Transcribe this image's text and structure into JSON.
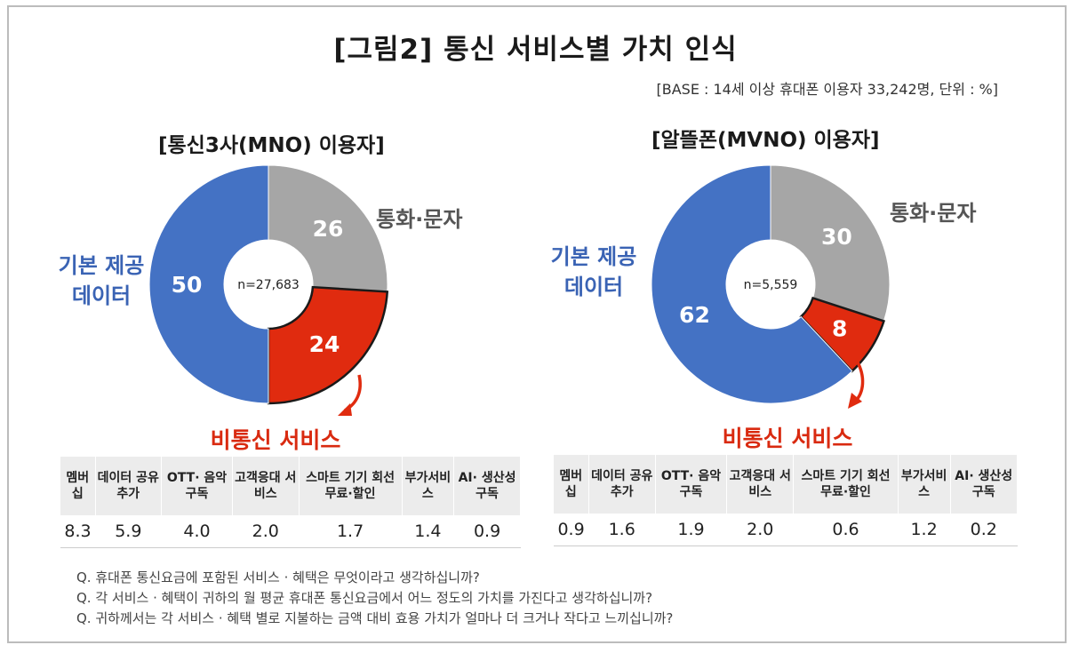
{
  "title": "[그림2] 통신 서비스별 가치 인식",
  "base_note": "[BASE : 14세 이상 휴대폰 이용자 33,242명, 단위 : %]",
  "panels": [
    {
      "title": "[통신3사(MNO) 이용자]",
      "n_label": "n=27,683",
      "label_basic": [
        "기본 제공",
        "데이터"
      ],
      "label_call": "통화·문자",
      "label_nontelecom": "비통신 서비스",
      "table_headers": [
        "멤버십",
        "데이터 공유추가",
        "OTT· 음악 구독",
        "고객응대 서비스",
        "스마트 기기 회선 무료·할인",
        "부가서비 스",
        "AI· 생산성 구독"
      ],
      "table_values": [
        "8.3",
        "5.9",
        "4.0",
        "2.0",
        "1.7",
        "1.4",
        "0.9"
      ]
    },
    {
      "title": "[알뜰폰(MVNO) 이용자]",
      "n_label": "n=5,559",
      "label_basic": [
        "기본 제공",
        "데이터"
      ],
      "label_call": "통화·문자",
      "label_nontelecom": "비통신 서비스",
      "table_headers": [
        "멤버십",
        "데이터 공유추가",
        "OTT· 음악 구독",
        "고객응대 서비스",
        "스마트 기기 회선 무료·할인",
        "부가서비 스",
        "AI· 생산성 구독"
      ],
      "table_values": [
        "0.9",
        "1.6",
        "1.9",
        "2.0",
        "0.6",
        "1.2",
        "0.2"
      ]
    }
  ],
  "notes": [
    "Q. 휴대폰 통신요금에 포함된 서비스 · 혜택은 무엇이라고 생각하십니까?",
    "Q. 각 서비스 · 혜택이 귀하의 월 평균 휴대폰 통신요금에서 어느 정도의 가치를 가진다고 생각하십니까?",
    "Q. 귀하께서는 각 서비스 · 혜택 별로 지불하는 금액 대비 효용 가치가 얼마나 더 크거나 작다고 느끼십니까?"
  ],
  "colors": {
    "blue": "#4472c4",
    "gray": "#a6a6a6",
    "red": "#e02b0f",
    "outline": "#1a1a1a"
  },
  "chart_data": [
    {
      "type": "pie",
      "title": "[통신3사(MNO) 이용자]",
      "categories": [
        "통화·문자",
        "비통신 서비스",
        "기본 제공 데이터"
      ],
      "values": [
        26,
        24,
        50
      ],
      "value_labels": [
        "26",
        "24",
        "50"
      ]
    },
    {
      "type": "pie",
      "title": "[알뜰폰(MVNO) 이용자]",
      "categories": [
        "통화·문자",
        "비통신 서비스",
        "기본 제공 데이터"
      ],
      "values": [
        30,
        8,
        62
      ],
      "value_labels": [
        "30",
        "8",
        "62"
      ]
    }
  ]
}
